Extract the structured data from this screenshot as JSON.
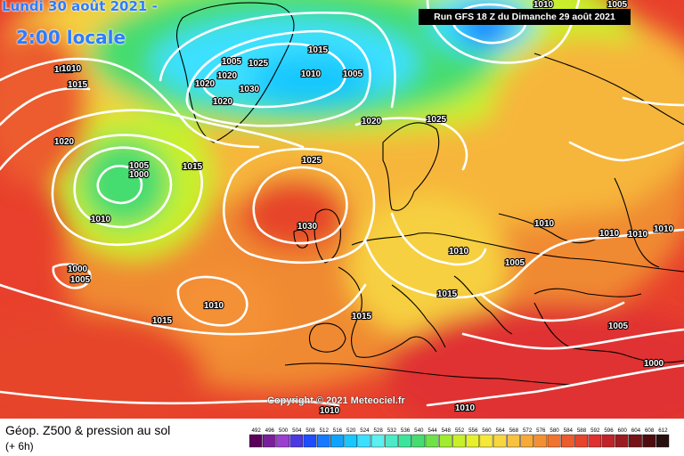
{
  "header": {
    "date_label": "Lundi 30 août 2021 - ",
    "time_label": "2:00 locale",
    "run_label": "Run GFS 18 Z du Dimanche 29 août 2021"
  },
  "footer": {
    "copyright": "Copyright © 2021 Meteociel.fr",
    "legend_title": "Géop. Z500 & pression au sol",
    "legend_subtitle": "(+ 6h)"
  },
  "legend": {
    "values": [
      "492",
      "496",
      "500",
      "504",
      "508",
      "512",
      "516",
      "520",
      "524",
      "528",
      "532",
      "536",
      "540",
      "544",
      "548",
      "552",
      "556",
      "560",
      "564",
      "568",
      "572",
      "576",
      "580",
      "584",
      "588",
      "592",
      "596",
      "600",
      "604",
      "608",
      "612"
    ],
    "colors": [
      "#5a005a",
      "#7a1f9a",
      "#9a3fcf",
      "#4b38e0",
      "#1f4dff",
      "#1779ff",
      "#10a2ff",
      "#17c8ff",
      "#3ce0ff",
      "#5cf0f0",
      "#4deac8",
      "#3de49c",
      "#45dc70",
      "#6fe24a",
      "#a0ec30",
      "#c8f02a",
      "#e6f02c",
      "#f6e83a",
      "#f8d640",
      "#f8c23e",
      "#f6aa38",
      "#f49034",
      "#f07430",
      "#ec5c2e",
      "#e6442c",
      "#e03030",
      "#c02428",
      "#9a1c20",
      "#741418",
      "#4e0c10",
      "#281010"
    ]
  },
  "isobars": {
    "labels": [
      {
        "text": "1010"
      },
      {
        "text": "1015"
      },
      {
        "text": "1020"
      },
      {
        "text": "1005"
      },
      {
        "text": "1000"
      },
      {
        "text": "1015"
      },
      {
        "text": "1010"
      },
      {
        "text": "1000"
      },
      {
        "text": "1005"
      },
      {
        "text": "1010"
      },
      {
        "text": "1015"
      },
      {
        "text": "1020"
      },
      {
        "text": "1020"
      },
      {
        "text": "1020"
      },
      {
        "text": "1025"
      },
      {
        "text": "1030"
      },
      {
        "text": "1010"
      },
      {
        "text": "1015"
      },
      {
        "text": "1005"
      },
      {
        "text": "1020"
      },
      {
        "text": "1025"
      },
      {
        "text": "1025"
      },
      {
        "text": "1030"
      },
      {
        "text": "1015"
      },
      {
        "text": "1010"
      },
      {
        "text": "1005"
      },
      {
        "text": "1015"
      },
      {
        "text": "1010"
      },
      {
        "text": "1010"
      },
      {
        "text": "1010"
      },
      {
        "text": "1010"
      },
      {
        "text": "1005"
      },
      {
        "text": "1005"
      },
      {
        "text": "1000"
      },
      {
        "text": "1010"
      },
      {
        "text": "1010"
      },
      {
        "text": "1010"
      },
      {
        "text": "1005"
      },
      {
        "text": "1010"
      }
    ]
  }
}
